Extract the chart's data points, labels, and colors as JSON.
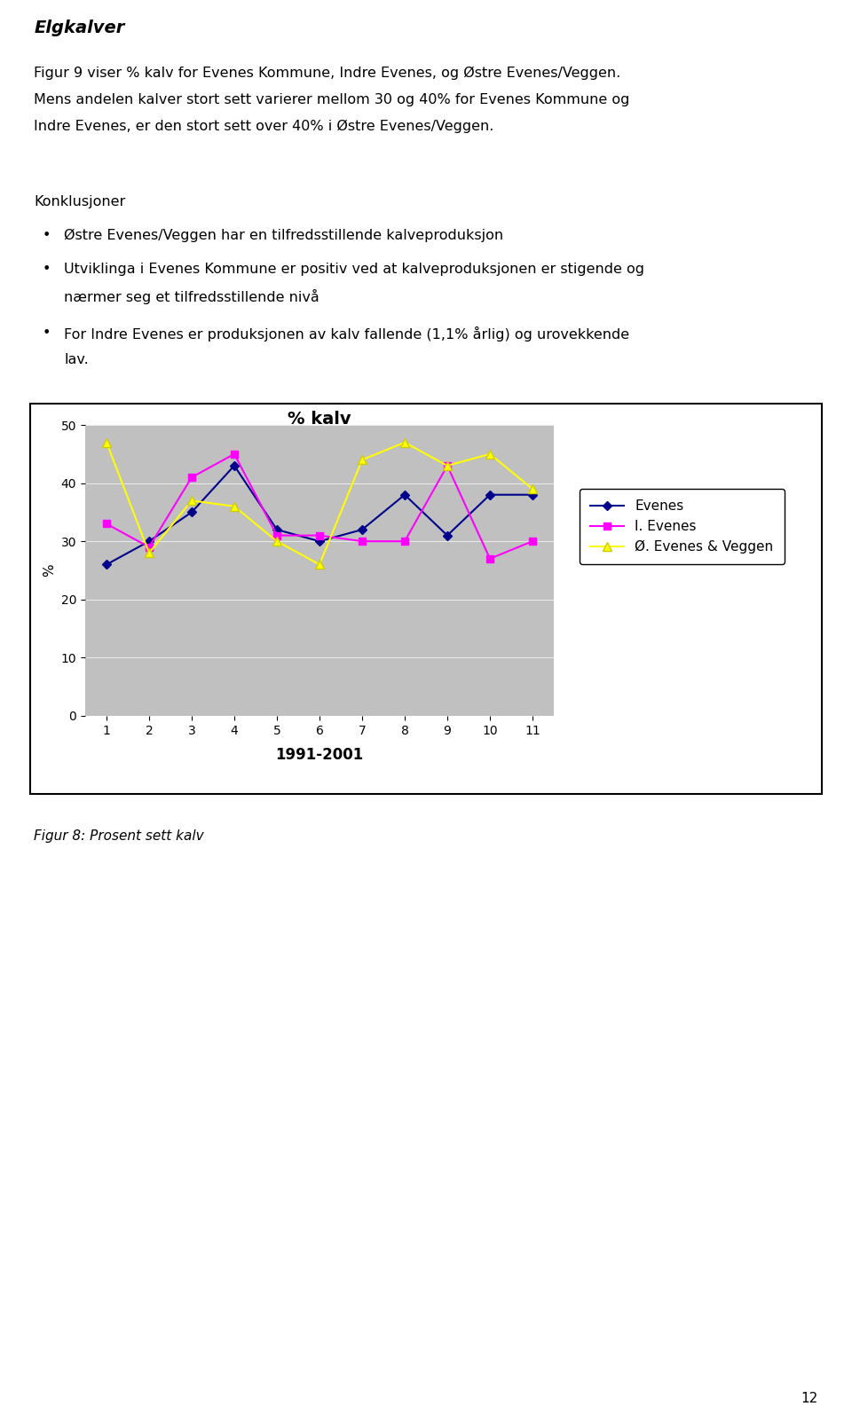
{
  "title": "% kalv",
  "xlabel": "1991-2001",
  "ylabel": "%",
  "x": [
    1,
    2,
    3,
    4,
    5,
    6,
    7,
    8,
    9,
    10,
    11
  ],
  "evenes": [
    26,
    30,
    35,
    43,
    32,
    30,
    32,
    38,
    31,
    38,
    38
  ],
  "i_evenes": [
    33,
    29,
    41,
    45,
    31,
    31,
    30,
    30,
    43,
    27,
    30
  ],
  "o_evenes": [
    47,
    28,
    37,
    36,
    30,
    26,
    44,
    47,
    43,
    45,
    39
  ],
  "evenes_color": "#00008B",
  "i_evenes_color": "#FF00FF",
  "o_evenes_color": "#FFFF00",
  "evenes_label": "Evenes",
  "i_evenes_label": "I. Evenes",
  "o_evenes_label": "Ø. Evenes & Veggen",
  "ylim": [
    0,
    50
  ],
  "yticks": [
    0,
    10,
    20,
    30,
    40,
    50
  ],
  "plot_bg_color": "#C0C0C0",
  "fig_bg_color": "#FFFFFF",
  "page_number": "12",
  "fig_caption": "Figur 8: Prosent sett kalv",
  "heading": "Elgkalver",
  "para1_line1": "Figur 9 viser % kalv for Evenes Kommune, Indre Evenes, og Østre Evenes/Veggen.",
  "para1_line2": "Mens andelen kalver stort sett varierer mellom 30 og 40% for Evenes Kommune og",
  "para1_line3": "Indre Evenes, er den stort sett over 40% i Østre Evenes/Veggen.",
  "konkl_heading": "Konklusjoner",
  "bullet1": "Østre Evenes/Veggen har en tilfredsstillende kalveproduksjon",
  "bullet2a": "Utviklinga i Evenes Kommune er positiv ved at kalveproduksjonen er stigende og",
  "bullet2b": "nærmer seg et tilfredsstillende nivå",
  "bullet3a": "For Indre Evenes er produksjonen av kalv fallende (1,1% årlig) og urovekkende",
  "bullet3b": "lav."
}
